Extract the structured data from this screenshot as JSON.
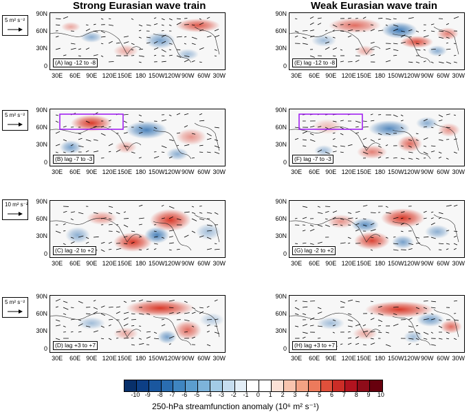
{
  "titles": {
    "left": "Strong Eurasian wave train",
    "right": "Weak Eurasian wave train"
  },
  "lat_labels": [
    "90N",
    "60N",
    "30N",
    "0"
  ],
  "lon_labels": [
    "30E",
    "60E",
    "90E",
    "120E",
    "150E",
    "180",
    "150W",
    "120W",
    "90W",
    "60W",
    "30W"
  ],
  "panels": {
    "A": "(A) lag -12 to -8",
    "B": "(B) lag -7 to -3",
    "C": "(C) lag -2 to +2",
    "D": "(D) lag +3 to +7",
    "E": "(E) lag -12 to -8",
    "F": "(F) lag -7 to -3",
    "G": "(G) lag -2 to +2",
    "H": "(H) lag +3 to +7"
  },
  "ref_vectors": {
    "r1": "5 m² s⁻²",
    "r2": "5 m² s⁻²",
    "r3": "10 m² s⁻²",
    "r4": "5 m² s⁻²"
  },
  "colorbar": {
    "ticks": [
      "-10",
      "-9",
      "-8",
      "-7",
      "-6",
      "-5",
      "-4",
      "-3",
      "-2",
      "-1",
      "0",
      "1",
      "2",
      "3",
      "4",
      "5",
      "6",
      "7",
      "8",
      "9",
      "10"
    ],
    "title": "250-hPa streamfunction anomaly (10⁶ m² s⁻¹)",
    "colors": [
      "#08306b",
      "#0d3f86",
      "#1a579f",
      "#2a6db0",
      "#3f85c0",
      "#5b9dce",
      "#7db3da",
      "#a3cbe6",
      "#c6ddef",
      "#e3eef7",
      "#ffffff",
      "#ffffff",
      "#fbe1d6",
      "#f8c4ae",
      "#f3a284",
      "#ec7a5c",
      "#e0503b",
      "#cc2d27",
      "#b2131f",
      "#8e0c19",
      "#67000d"
    ]
  },
  "box_color": "#a020f0",
  "positive_color": "#d7301f",
  "negative_color": "#2166ac"
}
